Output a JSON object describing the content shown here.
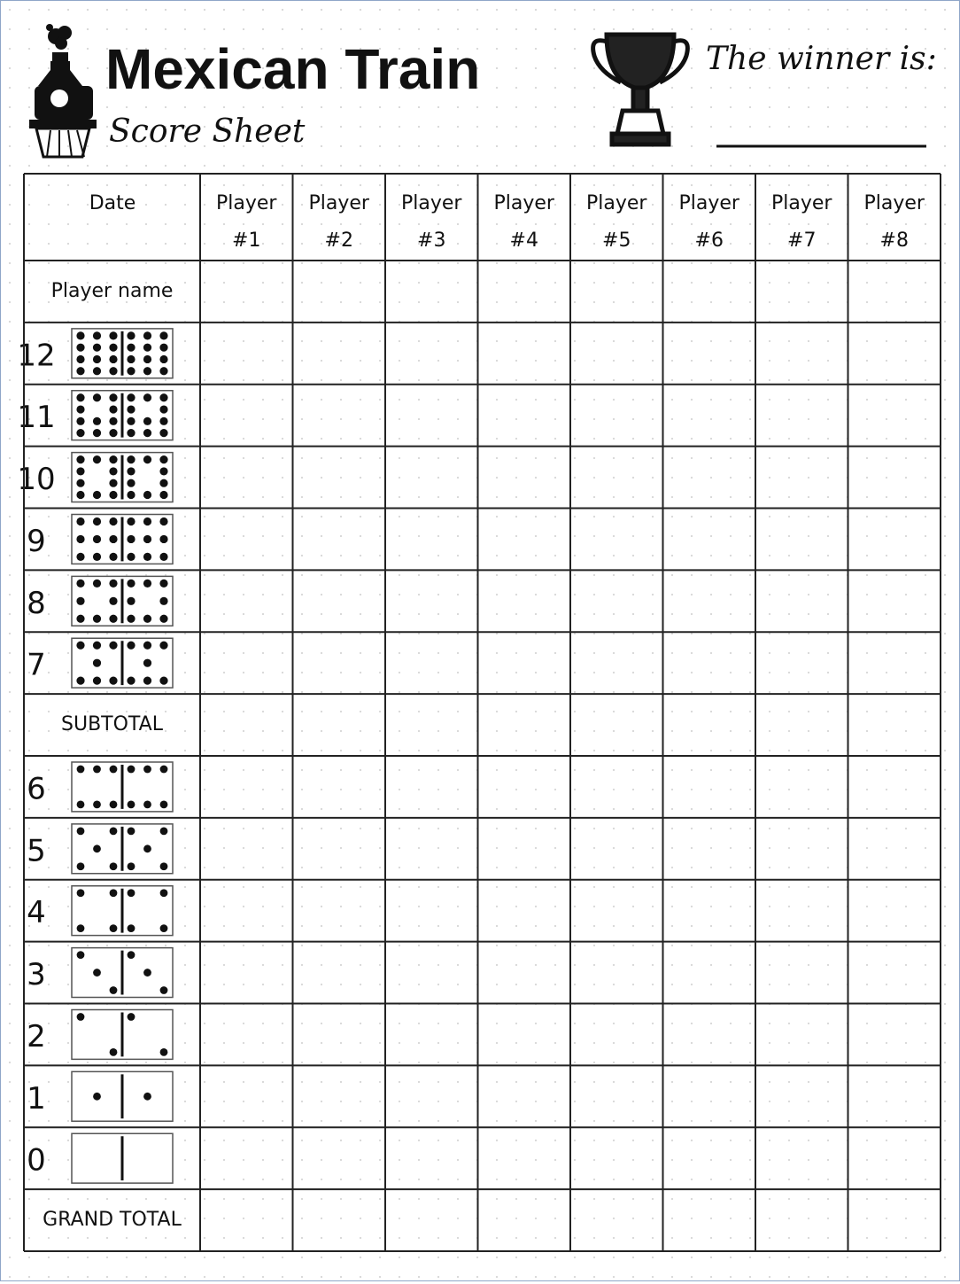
{
  "header": {
    "title": "Mexican Train",
    "subtitle": "Score Sheet",
    "winner_label": "The winner is:"
  },
  "table": {
    "date_label": "Date",
    "players": [
      {
        "label": "Player",
        "number": "#1"
      },
      {
        "label": "Player",
        "number": "#2"
      },
      {
        "label": "Player",
        "number": "#3"
      },
      {
        "label": "Player",
        "number": "#4"
      },
      {
        "label": "Player",
        "number": "#5"
      },
      {
        "label": "Player",
        "number": "#6"
      },
      {
        "label": "Player",
        "number": "#7"
      },
      {
        "label": "Player",
        "number": "#8"
      }
    ],
    "rows": [
      {
        "label": "Player name"
      },
      {
        "pips": 12
      },
      {
        "pips": 11
      },
      {
        "pips": 10
      },
      {
        "pips": 9
      },
      {
        "pips": 8
      },
      {
        "pips": 7
      },
      {
        "label": "SUBTOTAL"
      },
      {
        "pips": 6
      },
      {
        "pips": 5
      },
      {
        "pips": 4
      },
      {
        "pips": 3
      },
      {
        "pips": 2
      },
      {
        "pips": 1
      },
      {
        "pips": 0
      },
      {
        "label": "GRAND TOTAL"
      }
    ]
  }
}
